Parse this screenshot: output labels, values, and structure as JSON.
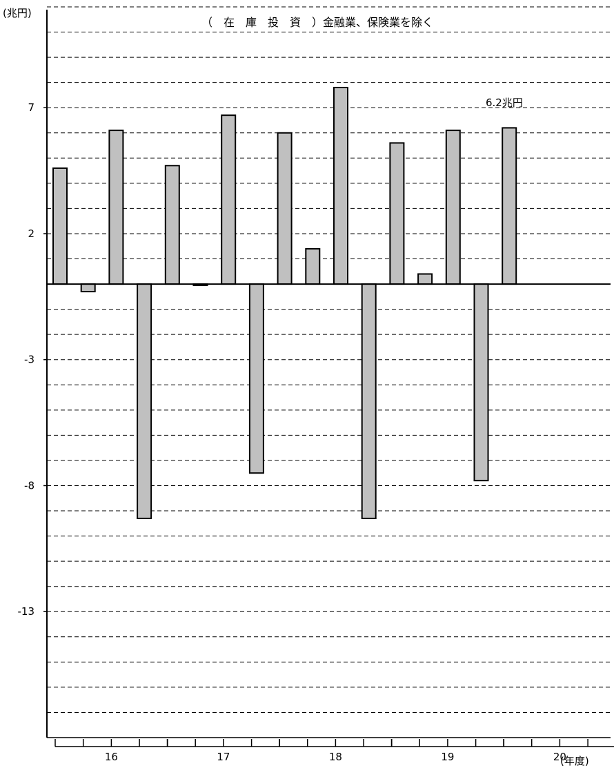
{
  "chart_data": {
    "type": "bar",
    "title": "（　在　庫　投　資　）金融業、保険業を除く",
    "y_unit_label": "(兆円)",
    "x_unit_label": "(年度)",
    "annotation": "6.2兆円",
    "ylim": [
      -18,
      11
    ],
    "y_ticks": [
      7,
      2,
      -3,
      -8,
      -13
    ],
    "y_tick_labels": [
      "7",
      "2",
      "-3",
      "-8",
      "-13"
    ],
    "grid": "dashed horizontal",
    "year_labels": [
      "16",
      "17",
      "18",
      "19",
      "20"
    ],
    "quarters_per_year": 4,
    "bar_color": "#c0c0c0",
    "values": [
      4.6,
      -0.3,
      6.1,
      -9.3,
      4.7,
      -0.05,
      6.7,
      -7.5,
      6.0,
      1.4,
      7.8,
      -9.3,
      5.6,
      0.4,
      6.1,
      -7.8,
      6.2
    ]
  }
}
